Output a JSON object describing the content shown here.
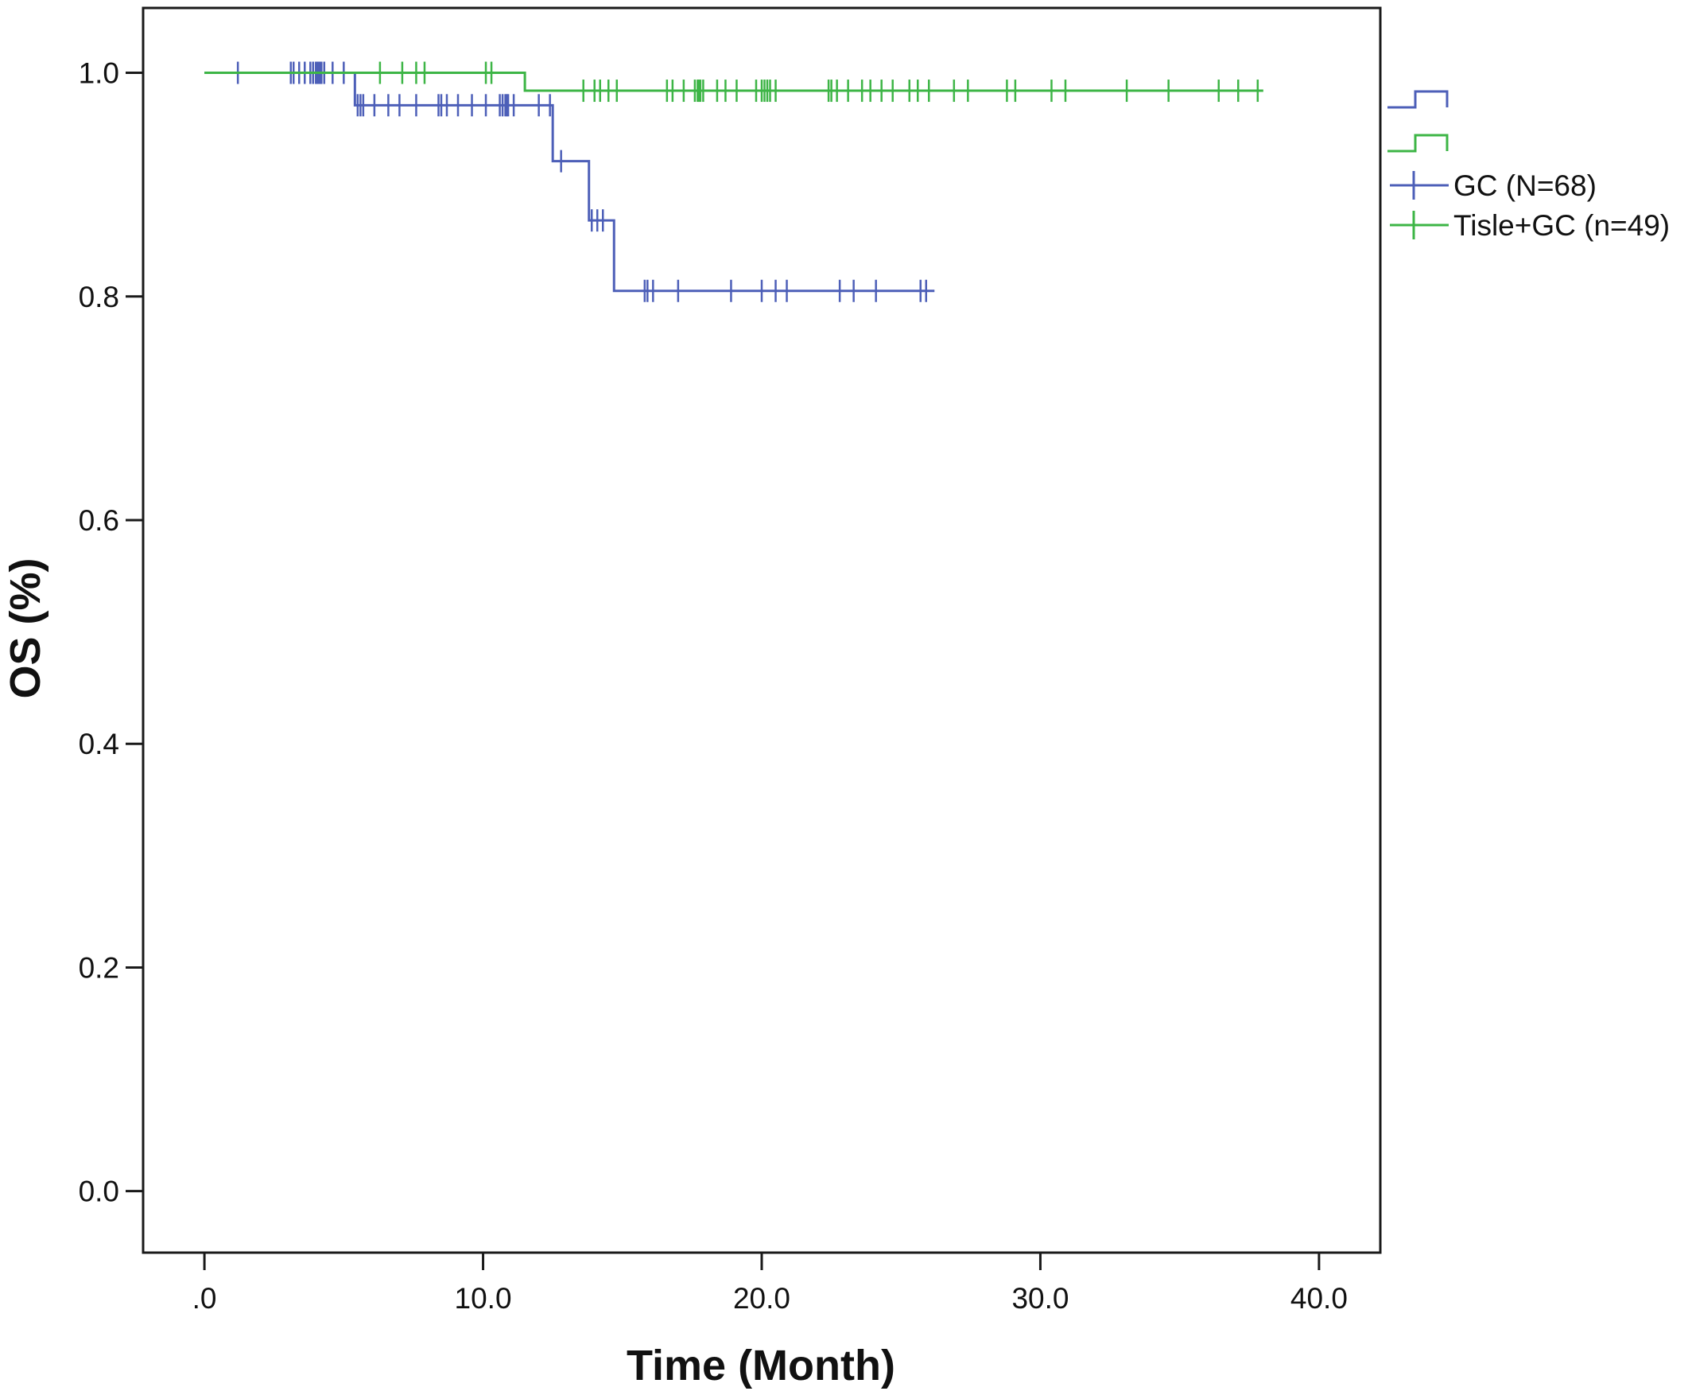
{
  "chart_data": {
    "type": "line",
    "subtype": "kaplan-meier",
    "xlabel": "Time (Month)",
    "ylabel": "OS (%)",
    "xlim": [
      -2.2,
      42.2
    ],
    "ylim": [
      -0.055,
      1.058
    ],
    "x_ticks": [
      0,
      10,
      20,
      30,
      40
    ],
    "x_tick_labels": [
      ".0",
      "10.0",
      "20.0",
      "30.0",
      "40.0"
    ],
    "y_ticks": [
      0,
      0.2,
      0.4,
      0.6,
      0.8,
      1.0
    ],
    "y_tick_labels": [
      "0.0",
      "0.2",
      "0.4",
      "0.6",
      "0.8",
      "1.0"
    ],
    "grid": false,
    "legend_position": "right",
    "series": [
      {
        "name": "GC (N=68)",
        "color": "#4d5fb8",
        "steps": [
          [
            0,
            1.0
          ],
          [
            5.4,
            0.971
          ],
          [
            12.5,
            0.921
          ],
          [
            13.8,
            0.868
          ],
          [
            14.7,
            0.805
          ],
          [
            26.2,
            0.805
          ]
        ],
        "censored": [
          1.2,
          3.1,
          3.2,
          3.4,
          3.6,
          3.8,
          3.9,
          4.0,
          4.05,
          4.1,
          4.15,
          4.2,
          4.3,
          4.6,
          5.0,
          5.5,
          5.6,
          5.7,
          6.1,
          6.6,
          7.0,
          7.6,
          8.4,
          8.5,
          8.7,
          9.1,
          9.6,
          10.1,
          10.6,
          10.7,
          10.8,
          10.85,
          10.9,
          11.1,
          12.0,
          12.4,
          12.8,
          13.9,
          14.1,
          14.3,
          15.8,
          15.9,
          16.1,
          17.0,
          18.9,
          20.0,
          20.5,
          20.9,
          22.8,
          23.3,
          24.1,
          25.7,
          25.9
        ]
      },
      {
        "name": "Tisle+GC (n=49)",
        "color": "#3db546",
        "steps": [
          [
            0,
            1.0
          ],
          [
            11.5,
            0.984
          ],
          [
            38.0,
            0.984
          ]
        ],
        "censored": [
          6.3,
          7.1,
          7.6,
          7.9,
          10.1,
          10.3,
          13.6,
          14.0,
          14.2,
          14.5,
          14.8,
          16.6,
          16.8,
          17.2,
          17.6,
          17.7,
          17.75,
          17.8,
          17.9,
          18.4,
          18.7,
          19.1,
          19.8,
          20.0,
          20.1,
          20.2,
          20.3,
          20.5,
          22.4,
          22.5,
          22.7,
          23.1,
          23.6,
          23.9,
          24.3,
          24.7,
          25.3,
          25.6,
          26.0,
          26.9,
          27.4,
          28.8,
          29.1,
          30.4,
          30.9,
          33.1,
          34.6,
          36.4,
          37.1,
          37.8
        ]
      }
    ]
  }
}
